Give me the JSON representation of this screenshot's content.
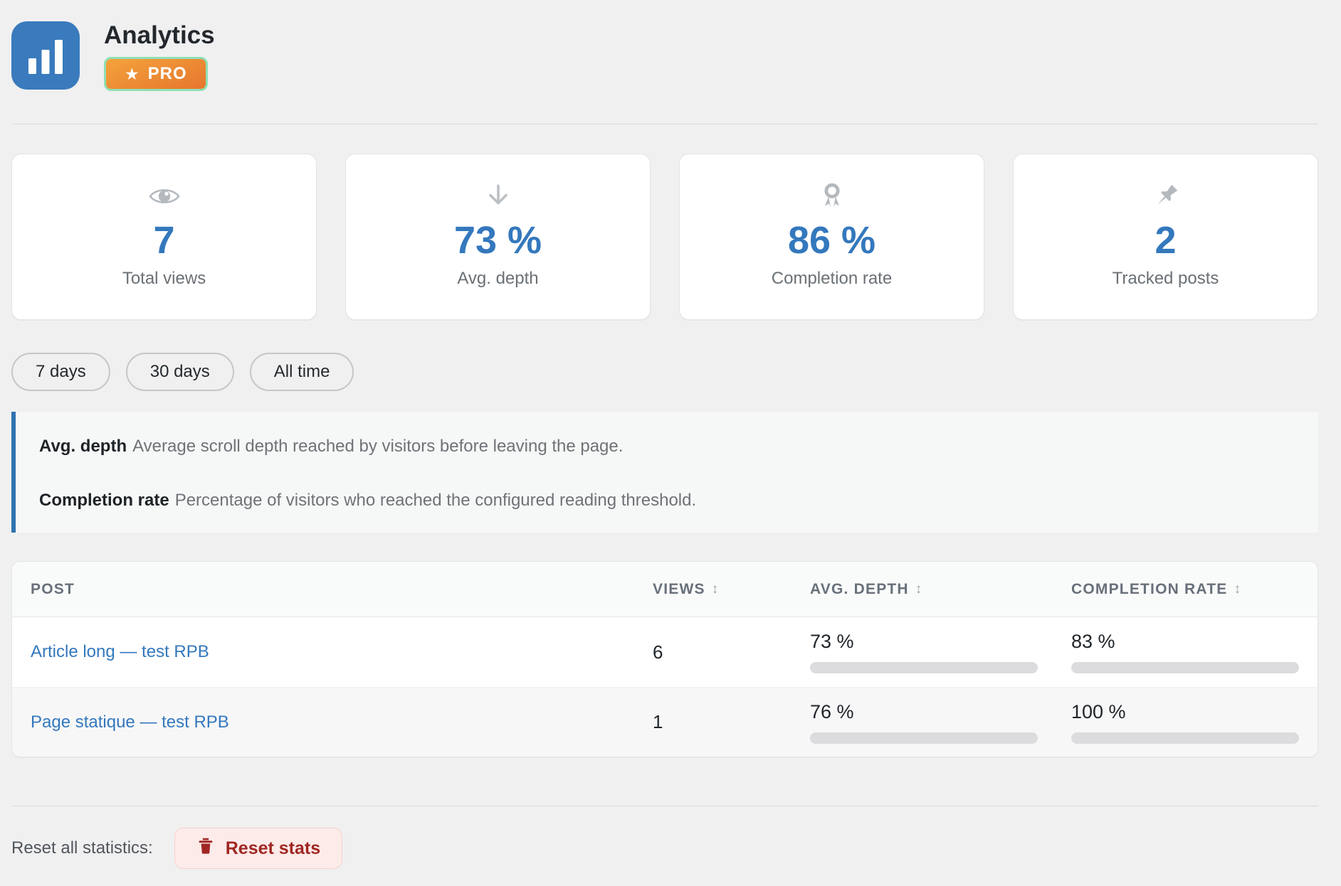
{
  "app": {
    "title": "Analytics",
    "pro_badge_label": "PRO"
  },
  "icons": {
    "star": "★",
    "sort": "↕"
  },
  "colors": {
    "accent_blue": "#3478bd",
    "page_bg": "#f0f0f1",
    "badge_orange_start": "#f4a33c",
    "badge_orange_end": "#e6762e",
    "badge_border_green": "#8fdfb4",
    "info_border_blue": "#3173ae",
    "bar_track_gray": "#dcdcde",
    "danger_text": "#a02622",
    "danger_bg": "#fcebe9"
  },
  "stats": [
    {
      "icon": "eye-icon",
      "value": "7",
      "label": "Total views"
    },
    {
      "icon": "arrow-down-icon",
      "value": "73 %",
      "label": "Avg. depth"
    },
    {
      "icon": "medal-icon",
      "value": "86 %",
      "label": "Completion rate"
    },
    {
      "icon": "pushpin-icon",
      "value": "2",
      "label": "Tracked posts"
    }
  ],
  "filters": [
    {
      "label": "7 days"
    },
    {
      "label": "30 days"
    },
    {
      "label": "All time"
    }
  ],
  "info": {
    "items": [
      {
        "term": "Avg. depth",
        "description": "Average scroll depth reached by visitors before leaving the page."
      },
      {
        "term": "Completion rate",
        "description": "Percentage of visitors who reached the configured reading threshold."
      }
    ]
  },
  "table": {
    "columns": [
      {
        "label": "POST",
        "sortable": false
      },
      {
        "label": "VIEWS",
        "sortable": true
      },
      {
        "label": "AVG. DEPTH",
        "sortable": true
      },
      {
        "label": "COMPLETION RATE",
        "sortable": true
      }
    ],
    "rows": [
      {
        "post": "Article long — test RPB",
        "views": "6",
        "avg_depth_label": "73 %",
        "avg_depth_pct": 73,
        "completion_label": "83 %",
        "completion_pct": 83
      },
      {
        "post": "Page statique — test RPB",
        "views": "1",
        "avg_depth_label": "76 %",
        "avg_depth_pct": 76,
        "completion_label": "100 %",
        "completion_pct": 100
      }
    ]
  },
  "footer": {
    "label": "Reset all statistics:",
    "reset_button_label": "Reset stats"
  }
}
